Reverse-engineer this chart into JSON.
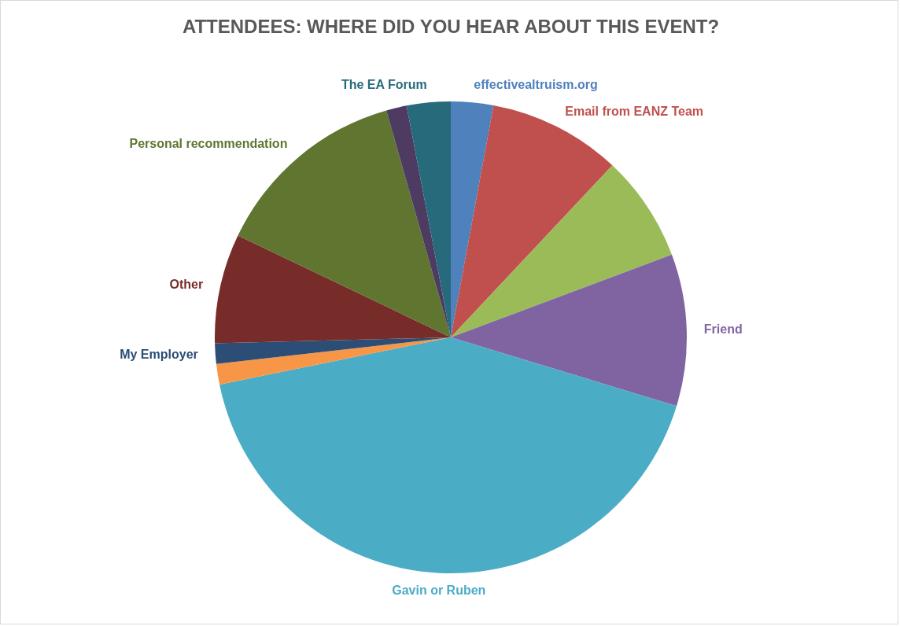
{
  "chart_data": {
    "type": "pie",
    "title": "ATTENDEES: WHERE DID YOU HEAR ABOUT THIS EVENT?",
    "categories": [
      "effectivealtruism.org",
      "Email from EANZ Team",
      null,
      "Friend",
      "Gavin or Ruben",
      null,
      "My Employer",
      "Other",
      "Personal recommendation",
      null,
      "The EA Forum"
    ],
    "values": [
      2.9,
      9.1,
      7.3,
      10.4,
      42.1,
      1.4,
      1.4,
      7.5,
      13.5,
      1.4,
      3.0
    ],
    "colors": [
      "#4f81bd",
      "#c0504d",
      "#9bbb59",
      "#8064a2",
      "#4bacc6",
      "#f79646",
      "#2c4d75",
      "#772c2a",
      "#5f7530",
      "#4d3b62",
      "#276a7c"
    ],
    "legend": false
  }
}
